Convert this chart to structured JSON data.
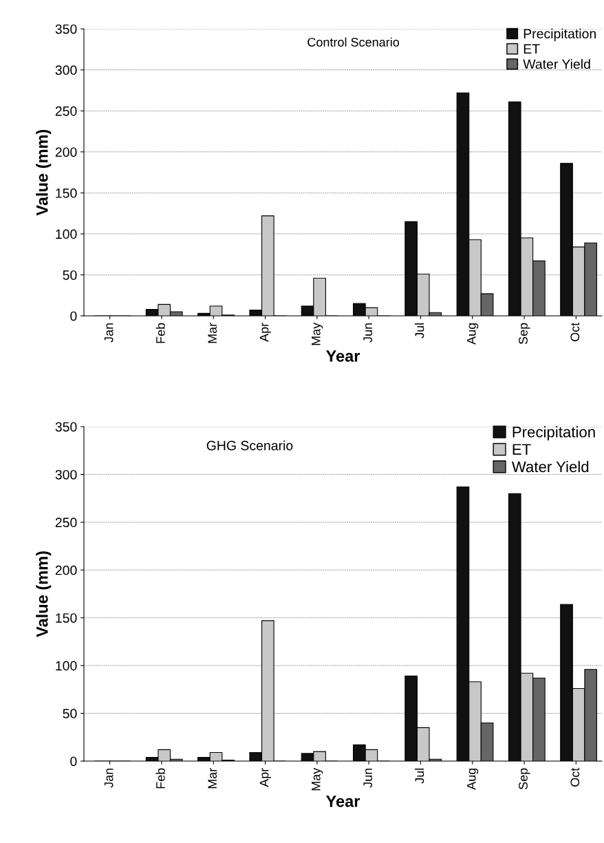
{
  "chart_data": [
    {
      "type": "bar",
      "title": "Control Scenario",
      "xlabel": "Year",
      "ylabel": "Value (mm)",
      "categories": [
        "Jan",
        "Feb",
        "Mar",
        "Apr",
        "May",
        "Jun",
        "Jul",
        "Aug",
        "Sep",
        "Oct"
      ],
      "series": [
        {
          "name": "Precipitation",
          "color": "#111111",
          "values": [
            0,
            8,
            3,
            7,
            12,
            15,
            115,
            272,
            261,
            186
          ]
        },
        {
          "name": "ET",
          "color": "#c8c8c8",
          "values": [
            0,
            14,
            12,
            122,
            46,
            10,
            51,
            93,
            95,
            84
          ]
        },
        {
          "name": "Water Yield",
          "color": "#666666",
          "values": [
            0,
            5,
            1,
            0,
            0,
            0,
            4,
            27,
            67,
            89
          ]
        }
      ],
      "ylim": [
        0,
        350
      ],
      "yticks": [
        0,
        50,
        100,
        150,
        200,
        250,
        300,
        350
      ],
      "grid": "y",
      "legend": "top right"
    },
    {
      "type": "bar",
      "title": "GHG Scenario",
      "xlabel": "Year",
      "ylabel": "Value (mm)",
      "categories": [
        "Jan",
        "Feb",
        "Mar",
        "Apr",
        "May",
        "Jun",
        "Jul",
        "Aug",
        "Sep",
        "Oct"
      ],
      "series": [
        {
          "name": "Precipitation",
          "color": "#111111",
          "values": [
            0,
            4,
            4,
            9,
            8,
            17,
            89,
            287,
            280,
            164
          ]
        },
        {
          "name": "ET",
          "color": "#c8c8c8",
          "values": [
            0,
            12,
            9,
            147,
            10,
            12,
            35,
            83,
            92,
            76
          ]
        },
        {
          "name": "Water Yield",
          "color": "#666666",
          "values": [
            0,
            2,
            1,
            0,
            0,
            0,
            2,
            40,
            87,
            96
          ]
        }
      ],
      "ylim": [
        0,
        350
      ],
      "yticks": [
        0,
        50,
        100,
        150,
        200,
        250,
        300,
        350
      ],
      "grid": "y",
      "legend": "top right"
    }
  ]
}
